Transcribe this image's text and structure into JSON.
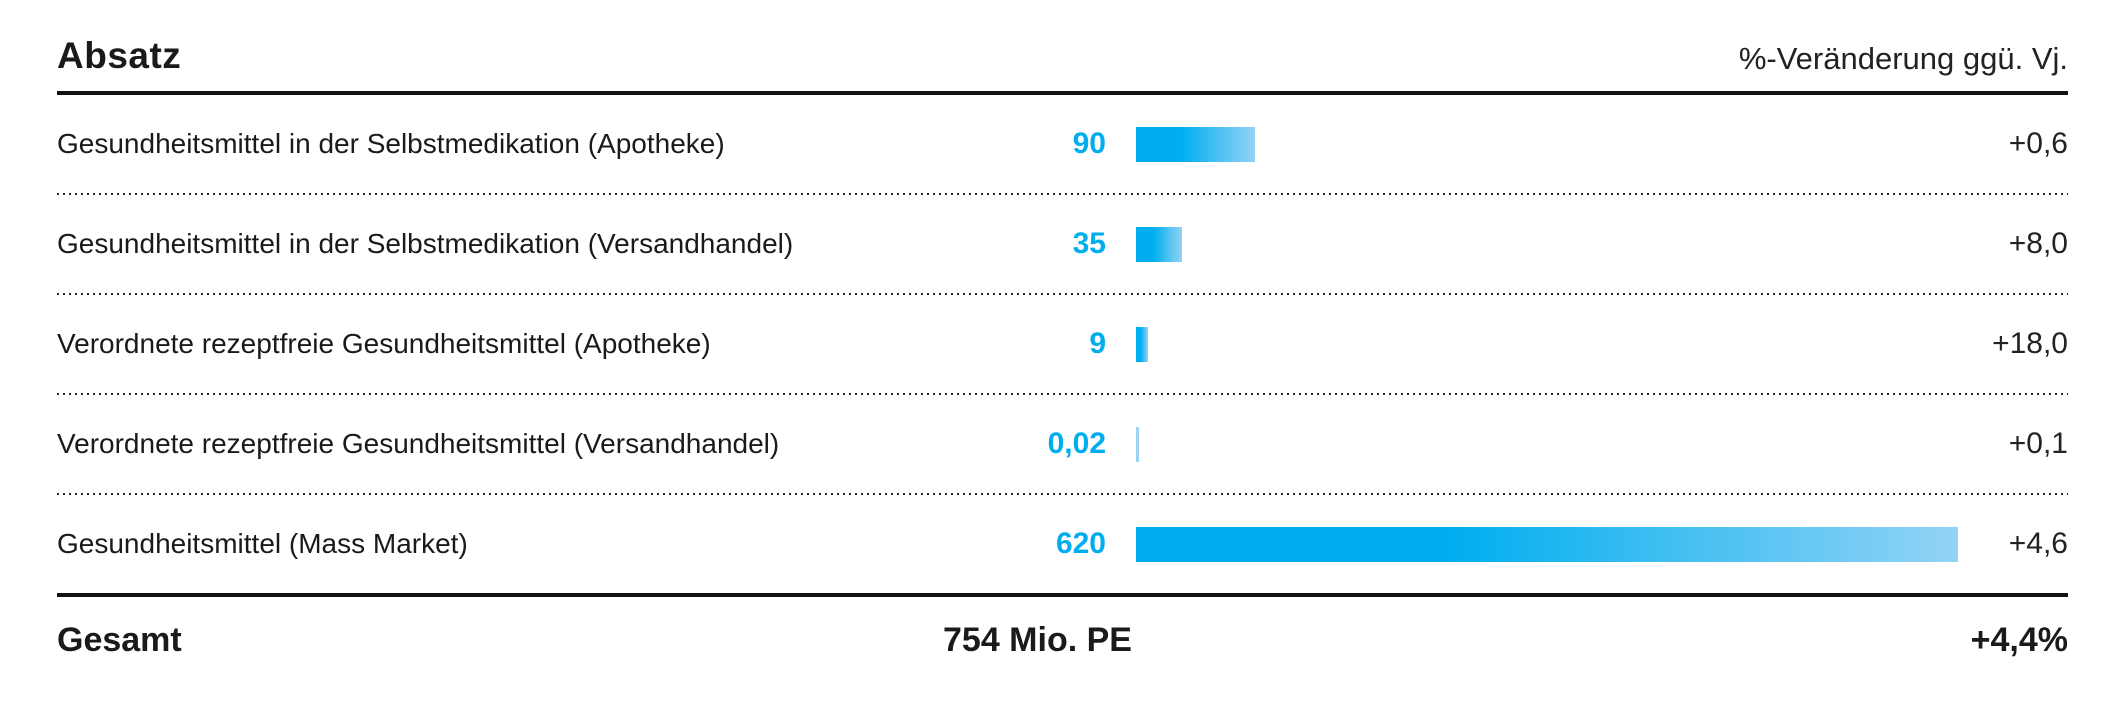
{
  "header": {
    "title": "Absatz",
    "change_column_label": "%-Veränderung ggü. Vj."
  },
  "chart_data": {
    "type": "bar",
    "orientation": "horizontal",
    "title": "Absatz",
    "change_column_label": "%-Veränderung ggü. Vj.",
    "categories": [
      "Gesundheitsmittel in der Selbstmedikation (Apotheke)",
      "Gesundheitsmittel in der Selbstmedikation (Versandhandel)",
      "Verordnete rezeptfreie Gesundheitsmittel (Apotheke)",
      "Verordnete rezeptfreie Gesundheitsmittel (Versandhandel)",
      "Gesundheitsmittel (Mass Market)"
    ],
    "values": [
      90,
      35,
      9,
      0.02,
      620
    ],
    "value_labels": [
      "90",
      "35",
      "9",
      "0,02",
      "620"
    ],
    "change_labels": [
      "+0,6",
      "+8,0",
      "+18,0",
      "+0,1",
      "+4,6"
    ],
    "changes_numeric": [
      0.6,
      8.0,
      18.0,
      0.1,
      4.6
    ],
    "xlim": [
      0,
      620
    ],
    "bar_colors": {
      "start": "#00AEEF",
      "end": "#93D3F5"
    },
    "total": {
      "label": "Gesamt",
      "value_label": "754 Mio. PE",
      "change_label": "+4,4%",
      "change_pct": 4.4
    }
  }
}
